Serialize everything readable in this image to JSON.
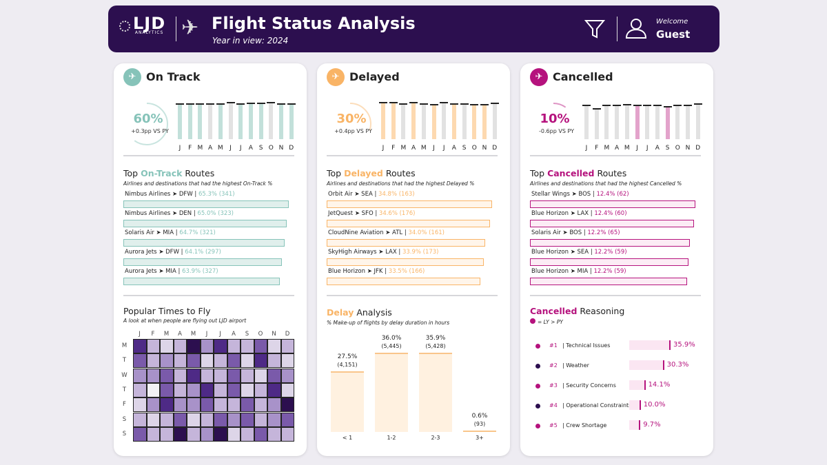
{
  "header": {
    "logo": "LJD",
    "logo_sub": "ANALYTICS",
    "title": "Flight Status Analysis",
    "subtitle": "Year in view: 2024",
    "welcome": "Welcome",
    "user": "Guest"
  },
  "months": [
    "J",
    "F",
    "M",
    "A",
    "M",
    "J",
    "J",
    "A",
    "S",
    "O",
    "N",
    "D"
  ],
  "colors": {
    "header": "#2c0f4f",
    "on_track": "#86c3b9",
    "delayed": "#f9b466",
    "cancelled": "#b5127d",
    "heat": "#2c0f4f"
  },
  "panels": [
    {
      "key": "on_track",
      "title": "On Track",
      "icon": "plane-check-icon",
      "kpi": "60%",
      "kpi_value": 60,
      "vs": "+0.3pp VS PY",
      "color": "#86c3b9",
      "bar_color": "#c2e0da",
      "highlight": [
        1,
        1,
        1,
        0,
        1,
        0,
        1,
        1,
        1,
        0,
        1,
        1
      ],
      "bar_heights": [
        0.96,
        0.96,
        0.96,
        0.96,
        0.96,
        1,
        0.96,
        0.98,
        0.98,
        1,
        0.97,
        0.96
      ],
      "routes_title_pre": "Top ",
      "routes_title_hl": "On-Track",
      "routes_title_post": " Routes",
      "routes_sub": "Airlines and destinations that had the highest On-Track %",
      "routes": [
        {
          "name": "Nimbus Airlines ➤ DFW | ",
          "value": "65.3% (341)",
          "pct": 65.3
        },
        {
          "name": "Nimbus Airlines ➤ DEN | ",
          "value": "65.0% (323)",
          "pct": 65.0
        },
        {
          "name": "Solaris Air ➤ MIA | ",
          "value": "64.7% (321)",
          "pct": 64.7
        },
        {
          "name": "Aurora Jets ➤ DFW | ",
          "value": "64.1% (297)",
          "pct": 64.1
        },
        {
          "name": "Aurora Jets ➤ MIA | ",
          "value": "63.9% (327)",
          "pct": 63.9
        }
      ]
    },
    {
      "key": "delayed",
      "title": "Delayed",
      "icon": "plane-clock-icon",
      "kpi": "30%",
      "kpi_value": 30,
      "vs": "+0.4pp VS PY",
      "color": "#f9b466",
      "bar_color": "#fdd9b0",
      "highlight": [
        1,
        1,
        0,
        1,
        0,
        1,
        0,
        1,
        0,
        1,
        1,
        0
      ],
      "bar_heights": [
        1,
        1,
        0.97,
        1,
        0.96,
        0.95,
        1,
        0.96,
        0.96,
        0.95,
        0.95,
        0.98
      ],
      "routes_title_pre": "Top ",
      "routes_title_hl": "Delayed",
      "routes_title_post": " Routes",
      "routes_sub": "Airlines and destinations that had the highest Delayed %",
      "routes": [
        {
          "name": "Orbit Air ➤ SEA | ",
          "value": "34.8% (163)",
          "pct": 34.8
        },
        {
          "name": "JetQuest ➤ SFO | ",
          "value": "34.6% (176)",
          "pct": 34.6
        },
        {
          "name": "CloudNine Aviation ➤ ATL | ",
          "value": "34.0% (161)",
          "pct": 34.0
        },
        {
          "name": "SkyHigh Airways ➤ LAX | ",
          "value": "33.9% (173)",
          "pct": 33.9
        },
        {
          "name": "Blue Horizon ➤ JFK | ",
          "value": "33.5% (166)",
          "pct": 33.5
        }
      ]
    },
    {
      "key": "cancelled",
      "title": "Cancelled",
      "icon": "plane-x-icon",
      "kpi": "10%",
      "kpi_value": 10,
      "vs": "-0.6pp VS PY",
      "color": "#b5127d",
      "bar_color": "#e3a3cb",
      "highlight": [
        0,
        0,
        0,
        0,
        0,
        1,
        0,
        0,
        1,
        0,
        0,
        0
      ],
      "bar_heights": [
        0.93,
        0.82,
        0.93,
        0.93,
        0.95,
        0.92,
        0.92,
        0.92,
        0.89,
        0.93,
        0.93,
        0.97
      ],
      "routes_title_pre": "Top ",
      "routes_title_hl": "Cancelled",
      "routes_title_post": " Routes",
      "routes_sub": "Airlines and destinations that had the highest Cancelled %",
      "routes": [
        {
          "name": "Stellar Wings ➤ BOS | ",
          "value": "12.4% (62)",
          "pct": 12.4
        },
        {
          "name": "Blue Horizon ➤ LAX | ",
          "value": "12.4% (60)",
          "pct": 12.4
        },
        {
          "name": "Solaris Air ➤ BOS | ",
          "value": "12.2% (65)",
          "pct": 12.2
        },
        {
          "name": "Blue Horizon ➤ SEA | ",
          "value": "12.2% (59)",
          "pct": 12.2
        },
        {
          "name": "Blue Horizon ➤ MIA | ",
          "value": "12.2% (59)",
          "pct": 12.2
        }
      ]
    }
  ],
  "popular": {
    "title": "Popular Times to Fly",
    "subtitle": "A look at when people are flying out LJD airport",
    "days": [
      "M",
      "T",
      "W",
      "T",
      "F",
      "S",
      "S"
    ],
    "levels": [
      [
        5,
        2,
        1,
        2,
        6,
        3,
        5,
        2,
        2,
        4,
        1,
        2
      ],
      [
        4,
        2,
        3,
        2,
        4,
        1,
        2,
        4,
        1,
        5,
        2,
        1
      ],
      [
        3,
        3,
        4,
        2,
        5,
        2,
        2,
        4,
        2,
        1,
        4,
        3
      ],
      [
        2,
        0,
        4,
        2,
        3,
        5,
        2,
        4,
        1,
        2,
        5,
        1
      ],
      [
        1,
        3,
        5,
        3,
        3,
        4,
        2,
        2,
        4,
        2,
        3,
        6
      ],
      [
        2,
        1,
        2,
        4,
        1,
        2,
        4,
        3,
        4,
        2,
        3,
        4
      ],
      [
        4,
        2,
        2,
        6,
        2,
        3,
        6,
        1,
        2,
        4,
        2,
        2
      ]
    ]
  },
  "delay_analysis": {
    "title_hl": "Delay",
    "title_rest": " Analysis",
    "subtitle": "% Make-up of flights by delay duration in hours",
    "chart_data": {
      "type": "bar",
      "categories": [
        "< 1",
        "1-2",
        "2-3",
        "3+"
      ],
      "values": [
        27.5,
        36.0,
        35.9,
        0.6
      ],
      "labels": [
        "27.5%",
        "36.0%",
        "35.9%",
        "0.6%"
      ],
      "counts": [
        "(4,151)",
        "(5,445)",
        "(5,428)",
        "(93)"
      ]
    }
  },
  "cancel_reasons": {
    "title_hl": "Cancelled",
    "title_rest": " Reasoning",
    "legend": "= LY > PY",
    "items": [
      {
        "rank": "#1",
        "name": "| Technical Issues",
        "value": "35.9%",
        "pct": 35.9,
        "dot": "#b5127d"
      },
      {
        "rank": "#2",
        "name": "| Weather",
        "value": "30.3%",
        "pct": 30.3,
        "dot": "#2c0f4f"
      },
      {
        "rank": "#3",
        "name": "| Security Concerns",
        "value": "14.1%",
        "pct": 14.1,
        "dot": "#b5127d"
      },
      {
        "rank": "#4",
        "name": "| Operational Constraints",
        "value": "10.0%",
        "pct": 10.0,
        "dot": "#2c0f4f"
      },
      {
        "rank": "#5",
        "name": "| Crew Shortage",
        "value": "9.7%",
        "pct": 9.7,
        "dot": "#b5127d"
      }
    ]
  }
}
